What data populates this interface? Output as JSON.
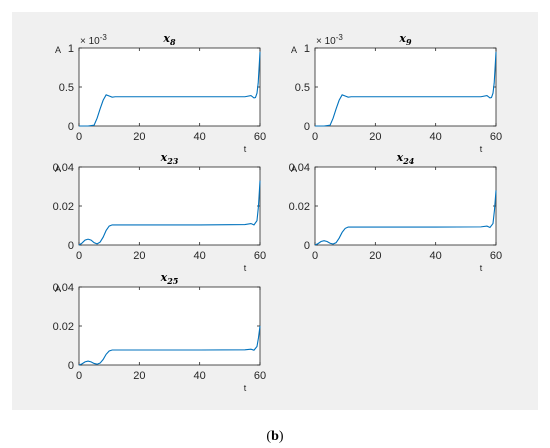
{
  "figure": {
    "background": "#f0f0f0",
    "caption": {
      "open": "(",
      "letter": "b",
      "close": ")"
    }
  },
  "chart_data": [
    {
      "type": "line",
      "title": {
        "base": "x",
        "sub": "8"
      },
      "xlabel": "t",
      "ylabel": "A",
      "xlim": [
        0,
        60
      ],
      "ylim": [
        0,
        0.001
      ],
      "xticks": [
        "0",
        "20",
        "40",
        "60"
      ],
      "yticks": [
        "0",
        "0.5",
        "1"
      ],
      "y_exponent": "× 10",
      "y_exponent_power": "-3",
      "color": "#0072bd",
      "x": [
        0,
        3,
        5,
        6,
        7,
        8,
        9,
        10,
        11,
        12,
        15,
        30,
        50,
        55,
        57,
        58,
        58.5,
        59,
        59.4,
        59.7,
        60
      ],
      "y": [
        0,
        0,
        1e-05,
        0.0001,
        0.00022,
        0.00033,
        0.0004,
        0.000385,
        0.00037,
        0.000375,
        0.000375,
        0.000375,
        0.000375,
        0.000375,
        0.00039,
        0.00036,
        0.000365,
        0.00042,
        0.00055,
        0.00075,
        0.00095
      ]
    },
    {
      "type": "line",
      "title": {
        "base": "x",
        "sub": "9"
      },
      "xlabel": "t",
      "ylabel": "A",
      "xlim": [
        0,
        60
      ],
      "ylim": [
        0,
        0.001
      ],
      "xticks": [
        "0",
        "20",
        "40",
        "60"
      ],
      "yticks": [
        "0",
        "0.5",
        "1"
      ],
      "y_exponent": "× 10",
      "y_exponent_power": "-3",
      "color": "#0072bd",
      "x": [
        0,
        3,
        5,
        6,
        7,
        8,
        9,
        10,
        11,
        12,
        15,
        30,
        50,
        55,
        57,
        58,
        58.5,
        59,
        59.4,
        59.7,
        60
      ],
      "y": [
        0,
        0,
        1e-05,
        0.0001,
        0.00022,
        0.00033,
        0.0004,
        0.000385,
        0.00037,
        0.000375,
        0.000375,
        0.000375,
        0.000375,
        0.000375,
        0.00039,
        0.00036,
        0.000365,
        0.00042,
        0.00055,
        0.00075,
        0.00095
      ]
    },
    {
      "type": "line",
      "title": {
        "base": "x",
        "sub": "23"
      },
      "xlabel": "t",
      "ylabel": "A",
      "xlim": [
        0,
        60
      ],
      "ylim": [
        0,
        0.04
      ],
      "xticks": [
        "0",
        "20",
        "40",
        "60"
      ],
      "yticks": [
        "0",
        "0.02",
        "0.04"
      ],
      "color": "#0072bd",
      "x": [
        0,
        1,
        2,
        3,
        4,
        5,
        6,
        7,
        8,
        9,
        10,
        11,
        12,
        20,
        40,
        55,
        57,
        58,
        59,
        59.5,
        60
      ],
      "y": [
        0,
        0.001,
        0.0025,
        0.003,
        0.0025,
        0.0012,
        0.0006,
        0.0015,
        0.004,
        0.0075,
        0.0097,
        0.0103,
        0.0103,
        0.0103,
        0.0103,
        0.0105,
        0.011,
        0.0103,
        0.0125,
        0.02,
        0.033
      ]
    },
    {
      "type": "line",
      "title": {
        "base": "x",
        "sub": "24"
      },
      "xlabel": "t",
      "ylabel": "A",
      "xlim": [
        0,
        60
      ],
      "ylim": [
        0,
        0.04
      ],
      "xticks": [
        "0",
        "20",
        "40",
        "60"
      ],
      "yticks": [
        "0",
        "0.02",
        "0.04"
      ],
      "color": "#0072bd",
      "x": [
        0,
        1,
        2,
        3,
        4,
        5,
        6,
        7,
        8,
        9,
        10,
        11,
        12,
        20,
        40,
        55,
        57,
        58,
        59,
        59.5,
        60
      ],
      "y": [
        0,
        0.0007,
        0.0018,
        0.0022,
        0.0018,
        0.0009,
        0.0005,
        0.0012,
        0.0035,
        0.0065,
        0.0085,
        0.0092,
        0.0092,
        0.0092,
        0.0092,
        0.0093,
        0.0097,
        0.009,
        0.011,
        0.018,
        0.028
      ]
    },
    {
      "type": "line",
      "title": {
        "base": "x",
        "sub": "25"
      },
      "xlabel": "t",
      "ylabel": "A",
      "xlim": [
        0,
        60
      ],
      "ylim": [
        0,
        0.04
      ],
      "xticks": [
        "0",
        "20",
        "40",
        "60"
      ],
      "yticks": [
        "0",
        "0.02",
        "0.04"
      ],
      "color": "#0072bd",
      "x": [
        0,
        1,
        2,
        3,
        4,
        5,
        6,
        7,
        8,
        9,
        10,
        11,
        12,
        20,
        40,
        55,
        57,
        58,
        59,
        59.5,
        60
      ],
      "y": [
        0,
        0.0006,
        0.0016,
        0.002,
        0.0016,
        0.0008,
        0.0004,
        0.001,
        0.0028,
        0.0055,
        0.0072,
        0.0077,
        0.0077,
        0.0077,
        0.0077,
        0.0078,
        0.0081,
        0.0076,
        0.0095,
        0.014,
        0.02
      ]
    }
  ]
}
